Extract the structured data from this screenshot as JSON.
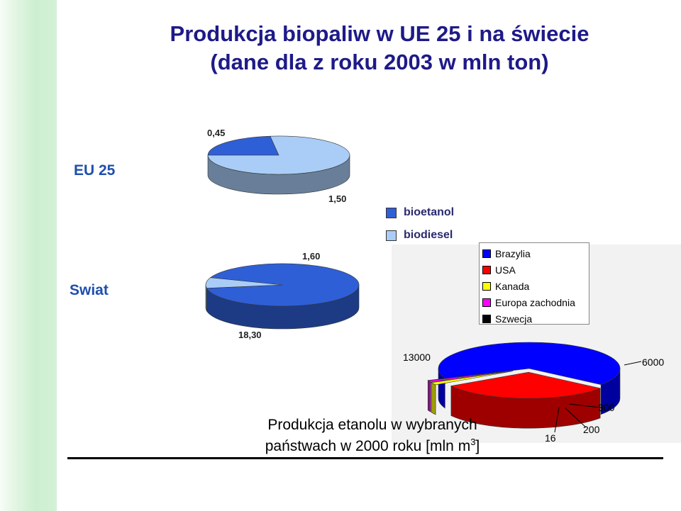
{
  "title_line1": "Produkcja biopaliw w UE 25 i na świecie",
  "title_line2": "(dane dla z roku 2003 w mln ton)",
  "chart_data": [
    {
      "type": "pie",
      "label": "EU 25",
      "slices": [
        {
          "name": "bioetanol",
          "value": 0.45,
          "value_label": "0,45",
          "color": "#2f5fd6"
        },
        {
          "name": "biodiesel",
          "value": 1.5,
          "value_label": "1,50",
          "color": "#a9cdf6"
        }
      ]
    },
    {
      "type": "pie",
      "label": "Swiat",
      "slices": [
        {
          "name": "bioetanol",
          "value": 18.3,
          "value_label": "18,30",
          "color": "#2f5fd6"
        },
        {
          "name": "biodiesel",
          "value": 1.6,
          "value_label": "1,60",
          "color": "#a9cdf6"
        }
      ]
    },
    {
      "type": "pie",
      "title": "Produkcja etanolu w wybranych",
      "title_line2": "państwach w 2000 roku [mln m",
      "title_sup": "3",
      "title_end": "]",
      "slices": [
        {
          "name": "Brazylia",
          "value": 13000,
          "value_label": "13000",
          "color": "#0000ff"
        },
        {
          "name": "USA",
          "value": 6000,
          "value_label": "6000",
          "color": "#ff0000"
        },
        {
          "name": "Kanada",
          "value": 300,
          "value_label": "300",
          "color": "#ffff00"
        },
        {
          "name": "Europa zachodnia",
          "value": 200,
          "value_label": "200",
          "color": "#ff00ff"
        },
        {
          "name": "Szwecja",
          "value": 16,
          "value_label": "16",
          "color": "#000000"
        }
      ]
    }
  ],
  "legend_biofuel": [
    {
      "name": "bioetanol",
      "color": "#2f5fd6"
    },
    {
      "name": "biodiesel",
      "color": "#a9cdf6"
    }
  ]
}
